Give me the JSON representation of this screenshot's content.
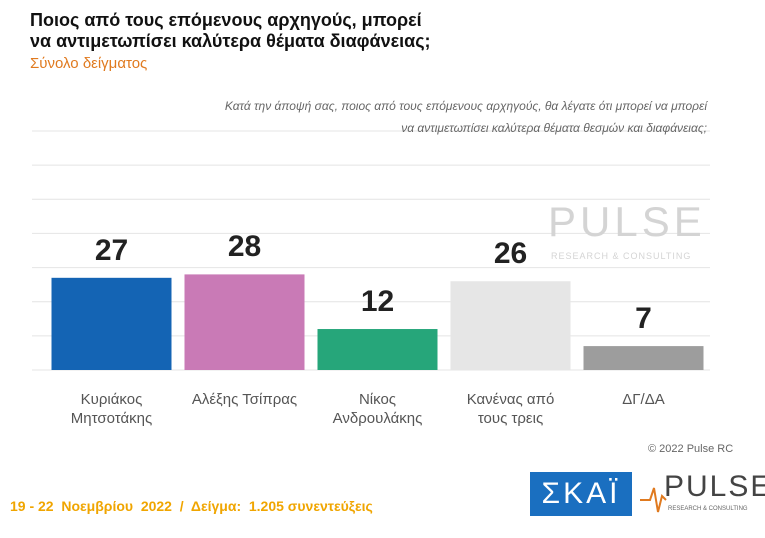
{
  "chart_data": {
    "type": "bar",
    "title": [
      "Ποιος από τους επόμενους αρχηγούς, μπορεί",
      "να αντιμετωπίσει καλύτερα θέματα διαφάνειας;"
    ],
    "subtitle": "Σύνολο δείγματος",
    "question": [
      "Κατά την άποψή σας, ποιος  από τους επόμενους αρχηγούς, θα λέγατε ότι μπορεί να μπορεί",
      "να αντιμετωπίσει καλύτερα θέματα θεσμών και διαφάνειας;"
    ],
    "categories": [
      "Κυριάκος Μητσοτάκης",
      "Αλέξης Τσίπρας",
      "Νίκος Ανδρουλάκης",
      "Κανένας από τους τρεις",
      "ΔΓ/ΔΑ"
    ],
    "values": [
      27,
      28,
      12,
      26,
      7
    ],
    "colors": [
      "#1464b4",
      "#c97ab6",
      "#26a67a",
      "#e6e6e6",
      "#9d9d9d"
    ],
    "ylim": [
      0,
      70
    ],
    "yticks": [
      0,
      10,
      20,
      30,
      40,
      50,
      60,
      70
    ],
    "grid": true
  },
  "footer": "19 - 22  Νοεμβρίου  2022  /  Δείγμα:  1.205 συνεντεύξεις",
  "copyright": "© 2022 Pulse RC",
  "logos": {
    "skai": "ΣΚΑΪ",
    "pulse": "PULSE",
    "pulse_tagline": "RESEARCH & CONSULTING"
  },
  "watermark": {
    "name": "PULSE",
    "tagline": "RESEARCH & CONSULTING"
  }
}
